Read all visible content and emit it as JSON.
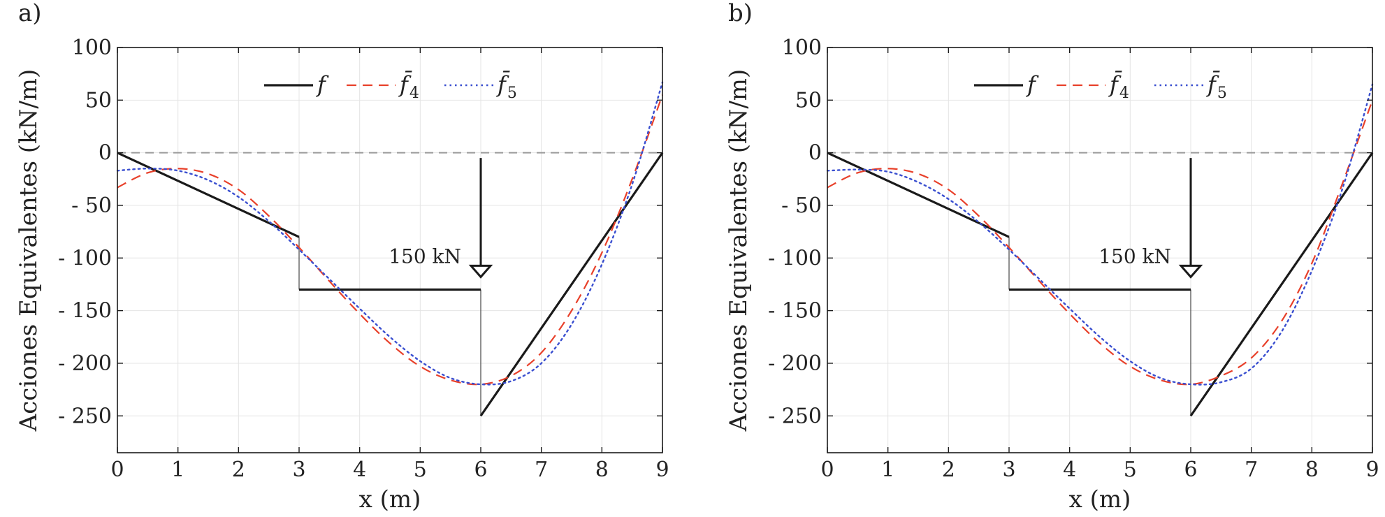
{
  "chart_data": [
    {
      "type": "line",
      "panel_label": "a)",
      "title": "",
      "xlabel": "x (m)",
      "ylabel": "Acciones Equivalentes (kN/m)",
      "xlim": [
        0,
        9
      ],
      "ylim": [
        -285,
        100
      ],
      "xticks": [
        0,
        1,
        2,
        3,
        4,
        5,
        6,
        7,
        8,
        9
      ],
      "xtick_labels": [
        "0",
        "1",
        "2",
        "3",
        "4",
        "5",
        "6",
        "7",
        "8",
        "9"
      ],
      "yticks": [
        100,
        50,
        0,
        -50,
        -100,
        -150,
        -200,
        -250
      ],
      "ytick_labels": [
        "100",
        "50",
        "0",
        "- 50",
        "- 100",
        "- 150",
        "- 200",
        "- 250"
      ],
      "grid": true,
      "legend_position": "top-center",
      "series": [
        {
          "name": "f",
          "legend_sub": "",
          "color": "#1a1a1a",
          "style": "solid",
          "x": [
            0,
            3,
            3,
            6,
            6,
            9
          ],
          "y": [
            0,
            -80,
            -130,
            -130,
            -250,
            0
          ]
        },
        {
          "name": "f̄",
          "legend_sub": "4",
          "color": "#e8402a",
          "style": "dashed",
          "x": [
            0,
            0.5,
            1,
            1.5,
            2,
            2.5,
            3,
            3.5,
            4,
            4.5,
            5,
            5.5,
            6,
            6.5,
            7,
            7.5,
            8,
            8.5,
            9
          ],
          "y": [
            -33,
            -19,
            -15,
            -20,
            -35,
            -60,
            -90,
            -122,
            -153,
            -181,
            -203,
            -216,
            -220,
            -212,
            -190,
            -150,
            -95,
            -25,
            55
          ]
        },
        {
          "name": "f̄",
          "legend_sub": "5",
          "color": "#3a4fd0",
          "style": "dotted",
          "x": [
            0,
            0.5,
            1,
            1.5,
            2,
            2.5,
            3,
            3.5,
            4,
            4.5,
            5,
            5.5,
            6,
            6.5,
            7,
            7.5,
            8,
            8.5,
            9
          ],
          "y": [
            -17,
            -15,
            -17,
            -26,
            -42,
            -65,
            -92,
            -120,
            -148,
            -175,
            -198,
            -214,
            -220,
            -217,
            -200,
            -163,
            -106,
            -30,
            67
          ]
        }
      ],
      "annotations": [
        {
          "text": "150 kN",
          "arrow_x": 6,
          "arrow_from_y": -5,
          "arrow_to_y": -118
        },
        {
          "text": "",
          "reference_line_y": 0
        }
      ]
    },
    {
      "type": "line",
      "panel_label": "b)",
      "title": "",
      "xlabel": "x (m)",
      "ylabel": "Acciones Equivalentes (kN/m)",
      "xlim": [
        0,
        9
      ],
      "ylim": [
        -285,
        100
      ],
      "xticks": [
        0,
        1,
        2,
        3,
        4,
        5,
        6,
        7,
        8,
        9
      ],
      "xtick_labels": [
        "0",
        "1",
        "2",
        "3",
        "4",
        "5",
        "6",
        "7",
        "8",
        "9"
      ],
      "yticks": [
        100,
        50,
        0,
        -50,
        -100,
        -150,
        -200,
        -250
      ],
      "ytick_labels": [
        "100",
        "50",
        "0",
        "- 50",
        "- 100",
        "- 150",
        "- 200",
        "- 250"
      ],
      "grid": true,
      "legend_position": "top-center",
      "series": [
        {
          "name": "f",
          "legend_sub": "",
          "color": "#1a1a1a",
          "style": "solid",
          "x": [
            0,
            3,
            3,
            6,
            6,
            9
          ],
          "y": [
            0,
            -80,
            -130,
            -130,
            -250,
            0
          ]
        },
        {
          "name": "f̄",
          "legend_sub": "4",
          "color": "#e8402a",
          "style": "dashed",
          "x": [
            0,
            0.5,
            1,
            1.5,
            2,
            2.5,
            3,
            3.5,
            4,
            4.5,
            5,
            5.5,
            6,
            6.5,
            7,
            7.5,
            8,
            8.5,
            9
          ],
          "y": [
            -33,
            -19,
            -15,
            -20,
            -35,
            -60,
            -90,
            -122,
            -153,
            -181,
            -203,
            -216,
            -220,
            -212,
            -195,
            -160,
            -105,
            -30,
            50
          ]
        },
        {
          "name": "f̄",
          "legend_sub": "5",
          "color": "#3a4fd0",
          "style": "dotted",
          "x": [
            0,
            0.5,
            1,
            1.5,
            2,
            2.5,
            3,
            3.5,
            4,
            4.5,
            5,
            5.5,
            6,
            6.5,
            7,
            7.5,
            8,
            8.5,
            9
          ],
          "y": [
            -17,
            -16,
            -18,
            -28,
            -44,
            -66,
            -92,
            -120,
            -148,
            -175,
            -198,
            -214,
            -220,
            -218,
            -205,
            -170,
            -112,
            -35,
            65
          ]
        }
      ],
      "annotations": [
        {
          "text": "150 kN",
          "arrow_x": 6,
          "arrow_from_y": -5,
          "arrow_to_y": -118
        },
        {
          "text": "",
          "reference_line_y": 0
        }
      ]
    }
  ]
}
